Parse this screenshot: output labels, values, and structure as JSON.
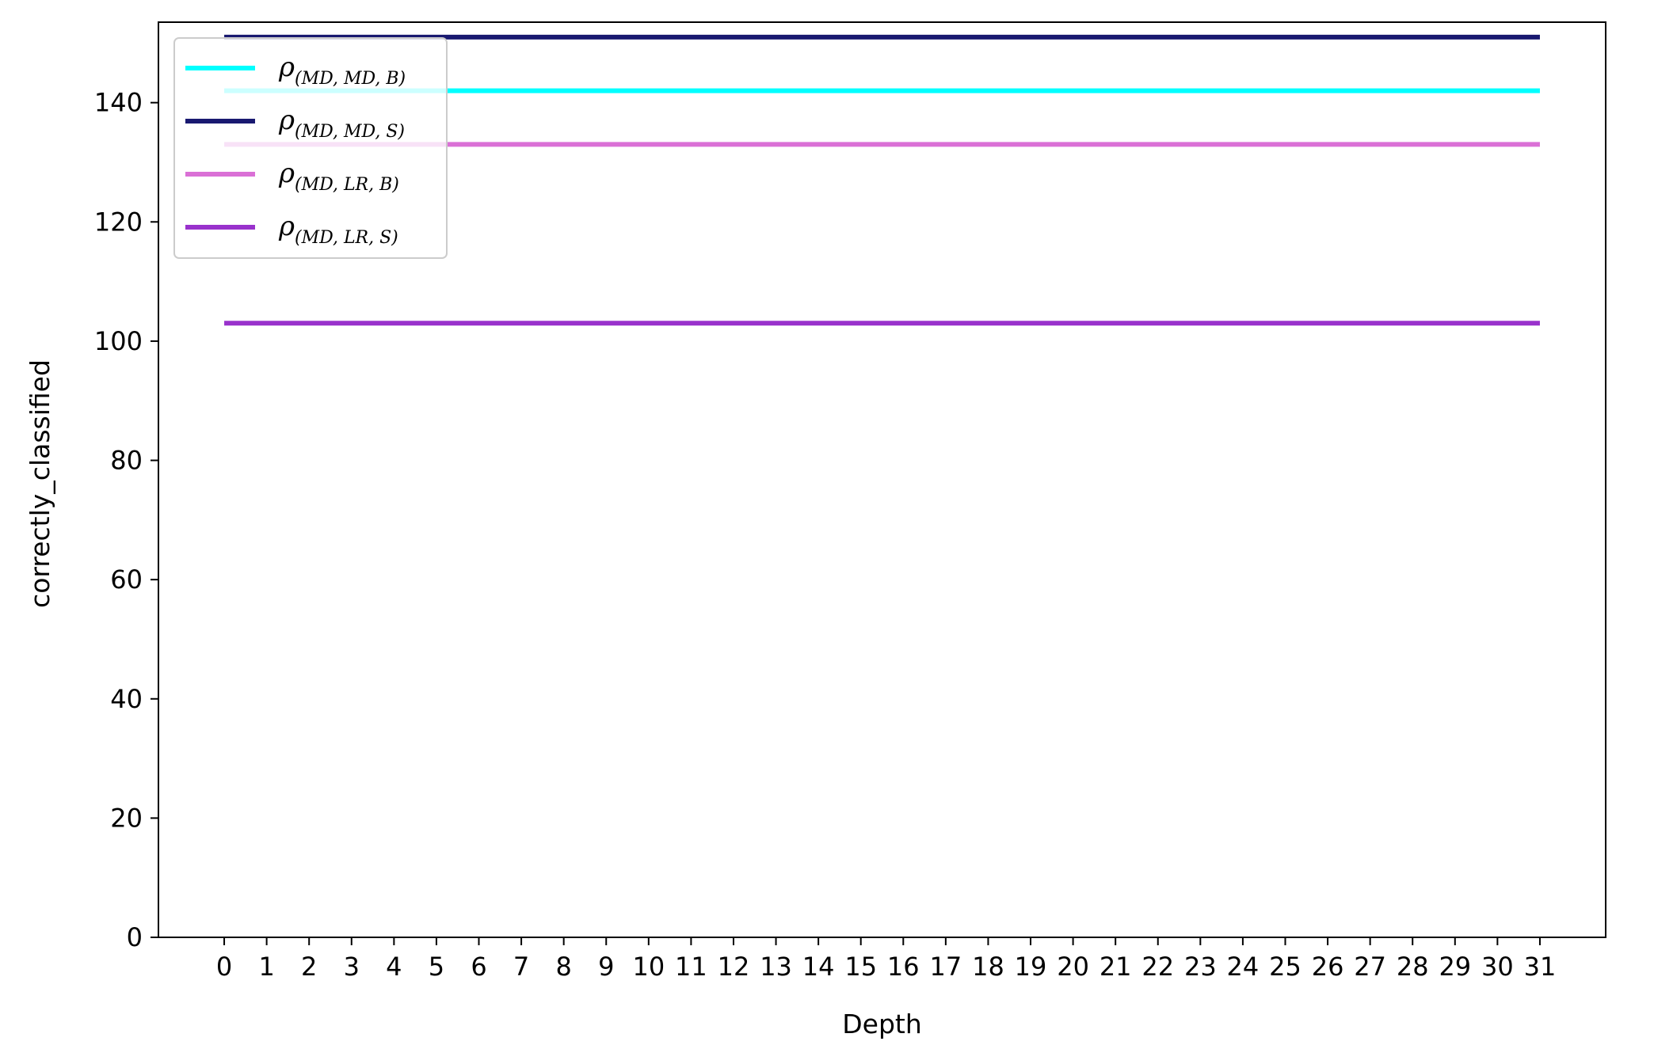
{
  "chart_data": {
    "type": "line",
    "title": "",
    "xlabel": "Depth",
    "ylabel": "correctly_classified",
    "x": [
      0,
      1,
      2,
      3,
      4,
      5,
      6,
      7,
      8,
      9,
      10,
      11,
      12,
      13,
      14,
      15,
      16,
      17,
      18,
      19,
      20,
      21,
      22,
      23,
      24,
      25,
      26,
      27,
      28,
      29,
      30,
      31
    ],
    "xticks": [
      "0",
      "1",
      "2",
      "3",
      "4",
      "5",
      "6",
      "7",
      "8",
      "9",
      "10",
      "11",
      "12",
      "13",
      "14",
      "15",
      "16",
      "17",
      "18",
      "19",
      "20",
      "21",
      "22",
      "23",
      "24",
      "25",
      "26",
      "27",
      "28",
      "29",
      "30",
      "31"
    ],
    "xlim": [
      -1.55,
      32.55
    ],
    "ylim": [
      0,
      153.5
    ],
    "yticks": [
      0,
      20,
      40,
      60,
      80,
      100,
      120,
      140
    ],
    "grid": false,
    "legend_position": "top-left",
    "series": [
      {
        "name": "ρ",
        "subscript": "(MD, MD, B)",
        "color": "#00ffff",
        "value": 142
      },
      {
        "name": "ρ",
        "subscript": "(MD, MD, S)",
        "color": "#191970",
        "value": 151
      },
      {
        "name": "ρ",
        "subscript": "(MD, LR, B)",
        "color": "#da70d6",
        "value": 133
      },
      {
        "name": "ρ",
        "subscript": "(MD, LR, S)",
        "color": "#9932cc",
        "value": 103
      }
    ],
    "draw_order": [
      2,
      3,
      0,
      1
    ]
  }
}
